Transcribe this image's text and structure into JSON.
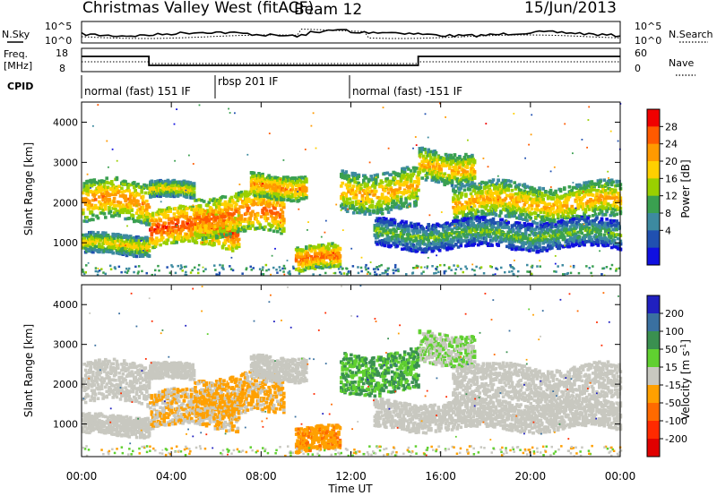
{
  "header": {
    "station": "Christmas Valley West (fitACF)",
    "beam": "Beam 12",
    "date": "15/Jun/2013"
  },
  "noise_panel": {
    "left_label": "N.Sky",
    "right_label": "N.Search",
    "ticks_left": [
      "10^5",
      "10^0"
    ],
    "ticks_right": [
      "10^5",
      "10^0"
    ]
  },
  "freq_panel": {
    "left_label_1": "Freq.",
    "left_label_2": "[MHz]",
    "right_label": "Nave",
    "ticks_left": [
      "18",
      "8"
    ],
    "ticks_right": [
      "60",
      "0"
    ]
  },
  "cpid": {
    "label": "CPID",
    "segments": [
      {
        "name": "normal (fast) 151 IF",
        "start_h": 0,
        "end_h": 6
      },
      {
        "name": "rbsp 201 IF",
        "start_h": 6,
        "end_h": 12
      },
      {
        "name": "normal (fast) -151 IF",
        "start_h": 12,
        "end_h": 24
      }
    ]
  },
  "x_axis": {
    "label": "Time UT",
    "range_h": [
      0,
      24
    ],
    "ticks": [
      "00:00",
      "04:00",
      "08:00",
      "12:00",
      "16:00",
      "20:00",
      "00:00"
    ]
  },
  "power_scale": {
    "title": "Power [dB]",
    "ticks": [
      "28",
      "24",
      "20",
      "16",
      "12",
      "8",
      "4"
    ],
    "colors": [
      "#f00000",
      "#ff5a00",
      "#ff9a00",
      "#ffd000",
      "#9ad000",
      "#3aa050",
      "#3d8aa0",
      "#2050b0",
      "#1010e0"
    ]
  },
  "velocity_scale": {
    "title": "Velocity [m s",
    "title_sup": "-1",
    "title_end": "]",
    "ticks": [
      "200",
      "100",
      "50",
      "15",
      "-15",
      "-50",
      "-100",
      "-200"
    ],
    "colors": [
      "#2020c0",
      "#3a70a0",
      "#3a9050",
      "#60d030",
      "#c8c8c0",
      "#ffa000",
      "#ff6a00",
      "#ff2a00",
      "#e00000"
    ]
  },
  "chart_data": {
    "type": "heatmap",
    "title": "Christmas Valley West (fitACF)",
    "ylabel": "Slant Range [km]",
    "xlabel": "Time UT",
    "ylim": [
      180,
      4500
    ],
    "y_ticks": [
      1000,
      2000,
      3000,
      4000
    ],
    "echo_bands": [
      {
        "t": [
          0,
          3
        ],
        "r_center": 2000,
        "r_width": 500,
        "power": 24,
        "velocity": 0
      },
      {
        "t": [
          0,
          3
        ],
        "r_center": 950,
        "r_width": 250,
        "power": 20,
        "velocity": 0
      },
      {
        "t": [
          3,
          7
        ],
        "r_center": 1350,
        "r_width": 450,
        "power": 28,
        "velocity": -15
      },
      {
        "t": [
          3,
          5
        ],
        "r_center": 2300,
        "r_width": 200,
        "power": 20,
        "velocity": 0
      },
      {
        "t": [
          5,
          9
        ],
        "r_center": 1700,
        "r_width": 500,
        "power": 26,
        "velocity": -20
      },
      {
        "t": [
          7.5,
          10
        ],
        "r_center": 2400,
        "r_width": 300,
        "power": 24,
        "velocity": 0
      },
      {
        "t": [
          9.5,
          11.5
        ],
        "r_center": 600,
        "r_width": 300,
        "power": 26,
        "velocity": -40
      },
      {
        "t": [
          11.5,
          15
        ],
        "r_center": 2300,
        "r_width": 500,
        "power": 22,
        "velocity": 30
      },
      {
        "t": [
          15,
          17.5
        ],
        "r_center": 2900,
        "r_width": 400,
        "power": 22,
        "velocity": 15
      },
      {
        "t": [
          16.5,
          24
        ],
        "r_center": 2000,
        "r_width": 450,
        "power": 22,
        "velocity": 0
      },
      {
        "t": [
          13,
          24
        ],
        "r_center": 1200,
        "r_width": 350,
        "power": 14,
        "velocity": 0
      }
    ]
  }
}
